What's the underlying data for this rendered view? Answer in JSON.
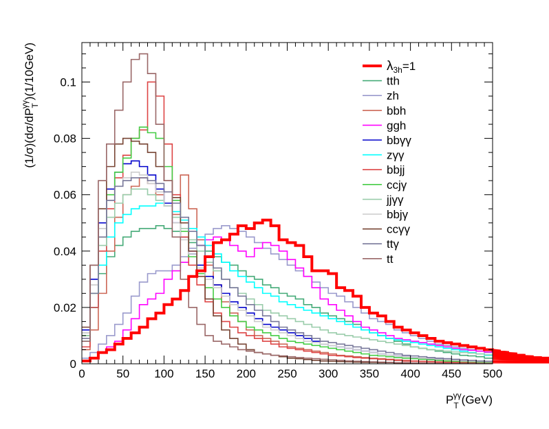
{
  "chart_data": {
    "type": "line",
    "style": "step-histogram",
    "title": "",
    "xlabel": {
      "main": "P",
      "sub": "T",
      "sup": "γγ",
      "unit": "(GeV)"
    },
    "ylabel": {
      "pre": "(1/σ)(dσ/dP",
      "sub": "T",
      "sup": "γγ",
      "post": ")(1/10GeV)"
    },
    "xlim": [
      0,
      500
    ],
    "ylim": [
      0,
      0.114
    ],
    "bin_width": 10,
    "x_ticks": [
      "0",
      "50",
      "100",
      "150",
      "200",
      "250",
      "300",
      "350",
      "400",
      "450",
      "500"
    ],
    "y_ticks": [
      {
        "v": 0,
        "label": "0"
      },
      {
        "v": 0.02,
        "label": "0.02"
      },
      {
        "v": 0.04,
        "label": "0.04"
      },
      {
        "v": 0.06,
        "label": "0.06"
      },
      {
        "v": 0.08,
        "label": "0.08"
      },
      {
        "v": 0.1,
        "label": "0.1"
      }
    ],
    "grid": false,
    "legend_position": "top-right",
    "series": [
      {
        "name": "λ3h=1",
        "label_main": "λ",
        "label_sub": "3h",
        "label_post": "=1",
        "color": "#ff0000",
        "bold": true,
        "values": [
          0.001,
          0.002,
          0.004,
          0.005,
          0.007,
          0.009,
          0.011,
          0.013,
          0.016,
          0.018,
          0.021,
          0.023,
          0.026,
          0.031,
          0.033,
          0.038,
          0.043,
          0.044,
          0.046,
          0.049,
          0.048,
          0.05,
          0.051,
          0.049,
          0.044,
          0.043,
          0.042,
          0.038,
          0.033,
          0.033,
          0.032,
          0.027,
          0.026,
          0.024,
          0.02,
          0.018,
          0.017,
          0.015,
          0.013,
          0.012,
          0.011,
          0.01,
          0.009,
          0.008,
          0.0075,
          0.007,
          0.0065,
          0.006,
          0.0055,
          0.005,
          0.0048,
          0.0045,
          0.004,
          0.0035,
          0.003,
          0.0025,
          0.0022,
          0.002,
          0.0018,
          0.0016,
          0.0015,
          0.0014,
          0.0013,
          0.0012,
          0.0011,
          0.001,
          0.0009,
          0.0008,
          0.0006,
          0.0008,
          0.0007,
          0.0008,
          0.0009,
          0.0007,
          0.0008,
          0.0009,
          0.0007,
          0.0009,
          0.0007,
          0.0009,
          0.0007,
          0.0008,
          0.0009,
          0.0007,
          0.0008,
          0.0009,
          0.0007,
          0.0008,
          0.0009,
          0.0007,
          0.0008,
          0.0009,
          0.0007,
          0.0008,
          0.0009,
          0.0007,
          0.0008,
          0.0009,
          0.0007,
          0.0008
        ]
      },
      {
        "name": "tth",
        "color": "#44aa77",
        "values": [
          0.011,
          0.02,
          0.032,
          0.038,
          0.042,
          0.045,
          0.047,
          0.048,
          0.048,
          0.049,
          0.048,
          0.047,
          0.045,
          0.043,
          0.042,
          0.04,
          0.038,
          0.036,
          0.035,
          0.033,
          0.031,
          0.03,
          0.028,
          0.027,
          0.025,
          0.024,
          0.023,
          0.021,
          0.02,
          0.018,
          0.017,
          0.016,
          0.015,
          0.014,
          0.012,
          0.011,
          0.01,
          0.009,
          0.008,
          0.007,
          0.006,
          0.0055,
          0.005,
          0.0045,
          0.004,
          0.0035,
          0.003,
          0.0028,
          0.0025,
          0.002
        ]
      },
      {
        "name": "zh",
        "color": "#9999cc",
        "values": [
          0.002,
          0.004,
          0.007,
          0.01,
          0.014,
          0.018,
          0.024,
          0.029,
          0.032,
          0.033,
          0.033,
          0.035,
          0.038,
          0.041,
          0.044,
          0.046,
          0.048,
          0.049,
          0.048,
          0.047,
          0.045,
          0.043,
          0.041,
          0.039,
          0.037,
          0.035,
          0.033,
          0.031,
          0.029,
          0.027,
          0.025,
          0.024,
          0.022,
          0.02,
          0.018,
          0.016,
          0.015,
          0.014,
          0.012,
          0.011,
          0.01,
          0.009,
          0.008,
          0.007,
          0.0065,
          0.006,
          0.0055,
          0.005,
          0.0045,
          0.004
        ]
      },
      {
        "name": "bbh",
        "color": "#cc6655",
        "values": [
          0.005,
          0.012,
          0.025,
          0.04,
          0.052,
          0.06,
          0.063,
          0.066,
          0.064,
          0.06,
          0.056,
          0.053,
          0.067,
          0.055,
          0.044,
          0.035,
          0.028,
          0.022,
          0.018,
          0.015,
          0.012,
          0.01,
          0.009,
          0.008,
          0.007,
          0.006,
          0.0055,
          0.005,
          0.0045,
          0.004,
          0.0035,
          0.003,
          0.0028,
          0.0025,
          0.0022,
          0.002,
          0.0018,
          0.0016,
          0.0014,
          0.0012,
          0.001,
          0.0009,
          0.0008,
          0.0007,
          0.0006,
          0.0005,
          0.0005,
          0.0004,
          0.0004,
          0.0003
        ]
      },
      {
        "name": "ggh",
        "color": "#ff00ff",
        "values": [
          0.001,
          0.002,
          0.004,
          0.006,
          0.008,
          0.012,
          0.016,
          0.021,
          0.023,
          0.025,
          0.03,
          0.033,
          0.036,
          0.04,
          0.042,
          0.044,
          0.045,
          0.044,
          0.042,
          0.04,
          0.038,
          0.041,
          0.043,
          0.042,
          0.04,
          0.037,
          0.034,
          0.031,
          0.027,
          0.023,
          0.021,
          0.019,
          0.017,
          0.015,
          0.013,
          0.012,
          0.011,
          0.01,
          0.009,
          0.0085,
          0.008,
          0.0075,
          0.007,
          0.0065,
          0.006,
          0.0055,
          0.005,
          0.0048,
          0.0045,
          0.0042
        ]
      },
      {
        "name": "bbγγ",
        "color": "#0000cc",
        "values": [
          0.012,
          0.03,
          0.05,
          0.062,
          0.068,
          0.071,
          0.072,
          0.07,
          0.067,
          0.062,
          0.057,
          0.05,
          0.045,
          0.039,
          0.035,
          0.031,
          0.028,
          0.025,
          0.022,
          0.02,
          0.018,
          0.016,
          0.014,
          0.013,
          0.012,
          0.011,
          0.01,
          0.009,
          0.008,
          0.007,
          0.0065,
          0.006,
          0.0055,
          0.005,
          0.0045,
          0.004,
          0.0035,
          0.003,
          0.0028,
          0.0025,
          0.0022,
          0.002,
          0.0018,
          0.0016,
          0.0014,
          0.0012,
          0.001,
          0.0009,
          0.0008,
          0.0007
        ]
      },
      {
        "name": "zγγ",
        "color": "#00ffff",
        "values": [
          0.008,
          0.02,
          0.035,
          0.045,
          0.05,
          0.053,
          0.055,
          0.056,
          0.056,
          0.057,
          0.056,
          0.054,
          0.051,
          0.048,
          0.045,
          0.042,
          0.039,
          0.036,
          0.033,
          0.031,
          0.029,
          0.027,
          0.025,
          0.024,
          0.022,
          0.021,
          0.02,
          0.019,
          0.018,
          0.017,
          0.016,
          0.015,
          0.014,
          0.013,
          0.012,
          0.011,
          0.01,
          0.009,
          0.0085,
          0.008,
          0.0075,
          0.007,
          0.0065,
          0.006,
          0.0055,
          0.005,
          0.0045,
          0.004,
          0.0035,
          0.003
        ]
      },
      {
        "name": "bbjj",
        "color": "#dd4444",
        "values": [
          0.006,
          0.02,
          0.04,
          0.055,
          0.066,
          0.074,
          0.08,
          0.083,
          0.1,
          0.095,
          0.078,
          0.06,
          0.045,
          0.035,
          0.028,
          0.022,
          0.018,
          0.015,
          0.013,
          0.011,
          0.01,
          0.009,
          0.008,
          0.007,
          0.006,
          0.0055,
          0.005,
          0.0045,
          0.004,
          0.0035,
          0.003,
          0.0028,
          0.0025,
          0.0022,
          0.002,
          0.0018,
          0.0016,
          0.0014,
          0.0012,
          0.001,
          0.0009,
          0.0008,
          0.0007,
          0.0006,
          0.0005,
          0.0005,
          0.0004,
          0.0004,
          0.0003,
          0.0003
        ]
      },
      {
        "name": "ccjγ",
        "color": "#44cc44",
        "values": [
          0.01,
          0.025,
          0.045,
          0.06,
          0.068,
          0.073,
          0.08,
          0.084,
          0.082,
          0.08,
          0.07,
          0.058,
          0.047,
          0.038,
          0.032,
          0.027,
          0.023,
          0.02,
          0.017,
          0.015,
          0.013,
          0.012,
          0.011,
          0.01,
          0.009,
          0.008,
          0.0075,
          0.007,
          0.0065,
          0.006,
          0.0055,
          0.005,
          0.0045,
          0.004,
          0.0035,
          0.003,
          0.0028,
          0.0025,
          0.0022,
          0.002,
          0.0018,
          0.0016,
          0.0014,
          0.0012,
          0.001,
          0.0009,
          0.0008,
          0.0007,
          0.0006,
          0.0005
        ]
      },
      {
        "name": "jjγγ",
        "color": "#99ccaa",
        "values": [
          0.01,
          0.025,
          0.042,
          0.052,
          0.057,
          0.06,
          0.062,
          0.062,
          0.06,
          0.058,
          0.056,
          0.052,
          0.048,
          0.044,
          0.04,
          0.036,
          0.033,
          0.03,
          0.027,
          0.025,
          0.023,
          0.021,
          0.019,
          0.018,
          0.017,
          0.016,
          0.015,
          0.014,
          0.013,
          0.012,
          0.011,
          0.0105,
          0.01,
          0.0095,
          0.009,
          0.0085,
          0.008,
          0.0075,
          0.007,
          0.0065,
          0.006,
          0.0055,
          0.005,
          0.0048,
          0.0045,
          0.0042,
          0.004,
          0.0038,
          0.0035,
          0.0032
        ]
      },
      {
        "name": "bbjγ",
        "color": "#cccccc",
        "values": [
          0.011,
          0.028,
          0.048,
          0.058,
          0.063,
          0.066,
          0.068,
          0.067,
          0.064,
          0.061,
          0.056,
          0.05,
          0.044,
          0.039,
          0.034,
          0.03,
          0.027,
          0.024,
          0.021,
          0.019,
          0.017,
          0.015,
          0.013,
          0.012,
          0.011,
          0.01,
          0.009,
          0.008,
          0.0075,
          0.007,
          0.0065,
          0.006,
          0.0055,
          0.005,
          0.0045,
          0.004,
          0.0035,
          0.003,
          0.0028,
          0.0025,
          0.0022,
          0.002,
          0.0018,
          0.0016,
          0.0014,
          0.0012,
          0.001,
          0.0009,
          0.0008,
          0.0007
        ]
      },
      {
        "name": "ccγγ",
        "color": "#774433",
        "values": [
          0.013,
          0.035,
          0.055,
          0.07,
          0.078,
          0.08,
          0.079,
          0.078,
          0.075,
          0.07,
          0.065,
          0.059,
          0.05,
          0.04,
          0.031,
          0.023,
          0.017,
          0.012,
          0.009,
          0.007,
          0.005,
          0.004,
          0.0035,
          0.003,
          0.0025,
          0.002,
          0.0018,
          0.0015,
          0.0012,
          0.001,
          0.0009,
          0.0008,
          0.0007,
          0.0006,
          0.0005,
          0.0005,
          0.0004,
          0.0004,
          0.0003,
          0.0003,
          0.0002,
          0.0002,
          0.0002,
          0.0001,
          0.0001,
          0.0001,
          0.0001,
          0.0001,
          0.0001,
          0.0001
        ]
      },
      {
        "name": "ttγ",
        "color": "#777799",
        "values": [
          0.009,
          0.025,
          0.045,
          0.058,
          0.063,
          0.065,
          0.066,
          0.066,
          0.065,
          0.064,
          0.061,
          0.057,
          0.052,
          0.047,
          0.042,
          0.038,
          0.034,
          0.03,
          0.027,
          0.024,
          0.021,
          0.019,
          0.017,
          0.015,
          0.013,
          0.012,
          0.011,
          0.01,
          0.009,
          0.008,
          0.0075,
          0.007,
          0.0065,
          0.006,
          0.0055,
          0.005,
          0.0045,
          0.004,
          0.0035,
          0.003,
          0.0028,
          0.0025,
          0.0022,
          0.002,
          0.0018,
          0.0016,
          0.0014,
          0.0012,
          0.001,
          0.0009
        ]
      },
      {
        "name": "tt",
        "color": "#996666",
        "values": [
          0.008,
          0.035,
          0.065,
          0.078,
          0.09,
          0.1,
          0.108,
          0.11,
          0.103,
          0.085,
          0.065,
          0.045,
          0.03,
          0.02,
          0.014,
          0.01,
          0.008,
          0.007,
          0.006,
          0.005,
          0.0045,
          0.004,
          0.0035,
          0.003,
          0.0028,
          0.0025,
          0.0022,
          0.002,
          0.0018,
          0.0016,
          0.0014,
          0.0012,
          0.001,
          0.0009,
          0.0008,
          0.0007,
          0.0006,
          0.0005,
          0.0004,
          0.0004,
          0.0003,
          0.0003,
          0.0002,
          0.0002,
          0.0002,
          0.0001,
          0.0001,
          0.0001,
          0.0001,
          0.0001
        ]
      }
    ]
  }
}
